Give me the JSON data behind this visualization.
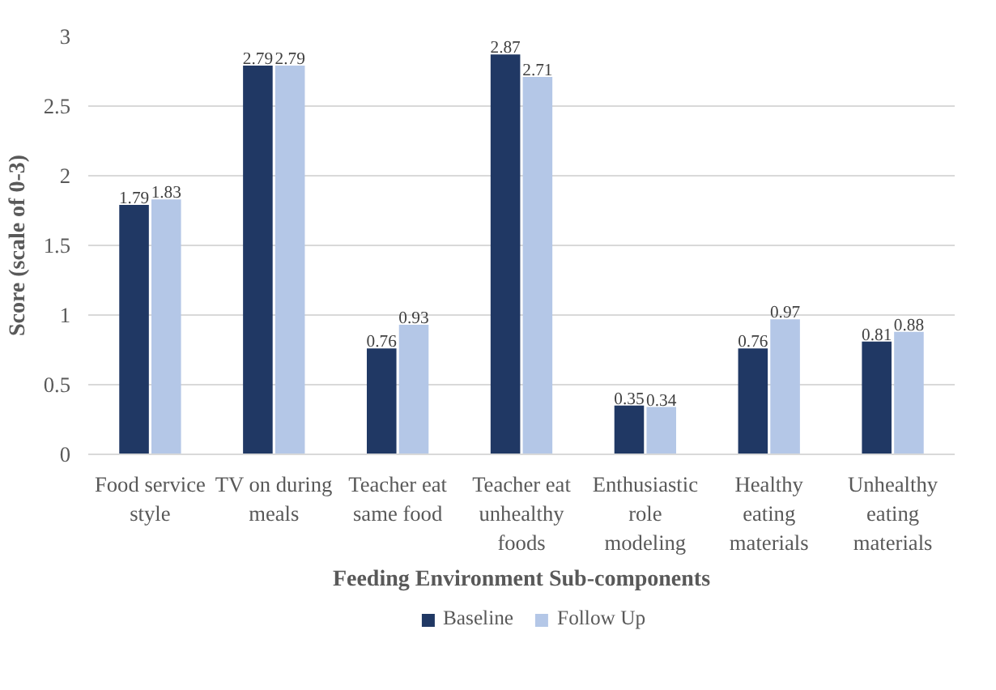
{
  "chart_data": {
    "type": "bar",
    "xlabel": "Feeding Environment Sub-components",
    "ylabel": "Score (scale of 0-3)",
    "categories": [
      "Food service style",
      "TV on during meals",
      "Teacher eat same food",
      "Teacher eat unhealthy foods",
      "Enthusiastic role modeling",
      "Healthy eating materials",
      "Unhealthy eating materials"
    ],
    "series": [
      {
        "name": "Baseline",
        "color": "#203864",
        "values": [
          1.79,
          2.79,
          0.76,
          2.87,
          0.35,
          0.76,
          0.81
        ]
      },
      {
        "name": "Follow Up",
        "color": "#b4c7e7",
        "values": [
          1.83,
          2.79,
          0.93,
          2.71,
          0.34,
          0.97,
          0.88
        ]
      }
    ],
    "ylim": [
      0,
      3
    ],
    "yticks": [
      0,
      0.5,
      1,
      1.5,
      2,
      2.5,
      3
    ],
    "grid": "y",
    "legend": "bottom",
    "data_labels": true
  }
}
